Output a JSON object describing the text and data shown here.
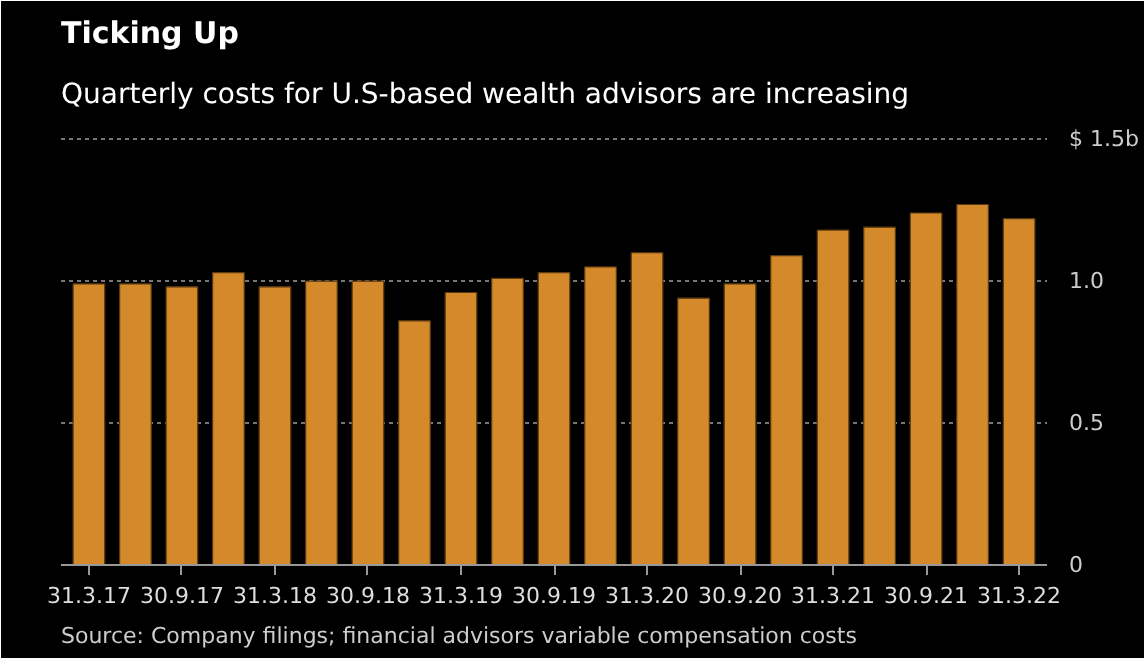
{
  "chart_data": {
    "type": "bar",
    "title": "Ticking Up",
    "subtitle": "Quarterly costs for U.S-based wealth advisors are increasing",
    "categories": [
      "31.3.17",
      null,
      "30.9.17",
      null,
      "31.3.18",
      null,
      "30.9.18",
      null,
      "31.3.19",
      null,
      "30.9.19",
      null,
      "31.3.20",
      null,
      "30.9.20",
      null,
      "31.3.21",
      null,
      "30.9.21",
      null,
      "31.3.22"
    ],
    "values": [
      0.99,
      0.99,
      0.98,
      1.03,
      0.98,
      1.0,
      1.0,
      0.86,
      0.96,
      1.01,
      1.03,
      1.05,
      1.1,
      0.94,
      0.99,
      1.09,
      1.18,
      1.19,
      1.24,
      1.27,
      1.22
    ],
    "color": "#d4892a",
    "ylim": [
      0,
      1.55
    ],
    "yticks": [
      0,
      0.5,
      {
        "value": 1.0,
        "label": "1.0"
      },
      {
        "value": 1.5,
        "label": "$ 1.5b"
      }
    ],
    "grid": "y",
    "annotations": [
      "Source: Company filings; financial advisors variable compensation costs"
    ]
  }
}
